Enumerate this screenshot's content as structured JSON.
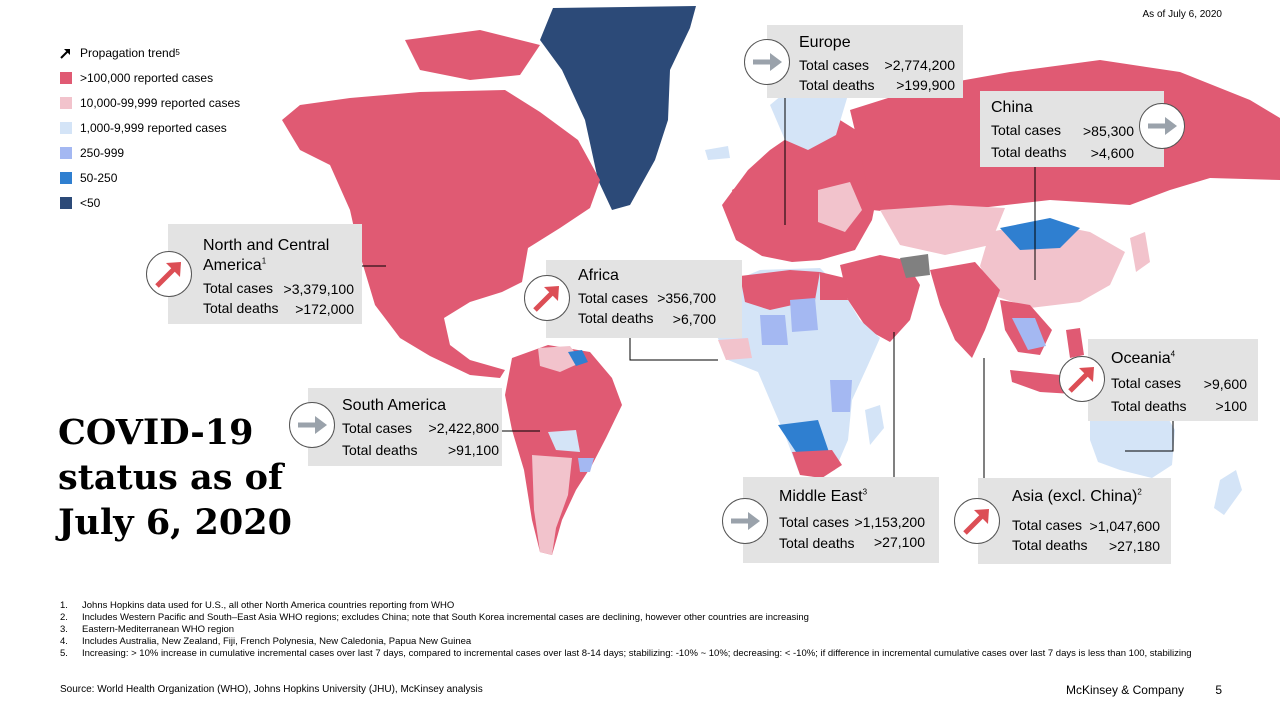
{
  "as_of": "As of July 6, 2020",
  "legend": {
    "trend_label": "Propagation trend",
    "trend_ref": "5",
    "items": [
      {
        "label": ">100,000 reported cases",
        "color": "#e05a73"
      },
      {
        "label": "10,000-99,999 reported cases",
        "color": "#f2c3cc"
      },
      {
        "label": "1,000-9,999 reported cases",
        "color": "#d4e4f7"
      },
      {
        "label": "250-999",
        "color": "#a4b8f2"
      },
      {
        "label": "50-250",
        "color": "#2f7fd0"
      },
      {
        "label": "<50",
        "color": "#2c4a78"
      }
    ]
  },
  "title": {
    "line1": "COVID-19",
    "line2": "status as of",
    "line3": "July 6, 2020"
  },
  "labels": {
    "total_cases": "Total cases",
    "total_deaths": "Total deaths"
  },
  "trend_colors": {
    "increasing": "#dc4e55",
    "stabilizing": "#9aa2ab"
  },
  "regions": {
    "north_america": {
      "name_line1": "North and Central",
      "name_line2": "America",
      "ref": "1",
      "cases": ">3,379,100",
      "deaths": ">172,000",
      "trend": "increasing"
    },
    "africa": {
      "name": "Africa",
      "cases": ">356,700",
      "deaths": ">6,700",
      "trend": "increasing"
    },
    "europe": {
      "name": "Europe",
      "cases": ">2,774,200",
      "deaths": ">199,900",
      "trend": "stabilizing"
    },
    "china": {
      "name": "China",
      "cases": ">85,300",
      "deaths": ">4,600",
      "trend": "stabilizing"
    },
    "south_america": {
      "name": "South America",
      "cases": ">2,422,800",
      "deaths": ">91,100",
      "trend": "stabilizing"
    },
    "oceania": {
      "name": "Oceania",
      "ref": "4",
      "cases": ">9,600",
      "deaths": ">100",
      "trend": "increasing"
    },
    "middle_east": {
      "name": "Middle East",
      "ref": "3",
      "cases": ">1,153,200",
      "deaths": ">27,100",
      "trend": "stabilizing"
    },
    "asia": {
      "name": "Asia (excl. China)",
      "ref": "2",
      "cases": ">1,047,600",
      "deaths": ">27,180",
      "trend": "increasing"
    }
  },
  "footnotes": [
    {
      "n": "1.",
      "text": "Johns Hopkins data used for U.S., all other North America countries reporting from WHO"
    },
    {
      "n": "2.",
      "text": "Includes Western Pacific and South–East Asia WHO regions; excludes China; note that South Korea incremental cases are declining, however other countries are increasing"
    },
    {
      "n": "3.",
      "text": "Eastern-Mediterranean WHO region"
    },
    {
      "n": "4.",
      "text": "Includes Australia, New Zealand, Fiji, French Polynesia, New Caledonia, Papua New Guinea"
    },
    {
      "n": "5.",
      "text": "Increasing: > 10% increase in cumulative incremental cases over last 7 days, compared to incremental cases over last 8-14 days; stabilizing: -10% ~ 10%; decreasing: < -10%; if difference in incremental cumulative cases over last 7 days is less than 100, stabilizing"
    }
  ],
  "source": "Source: World Health Organization (WHO), Johns Hopkins University (JHU), McKinsey analysis",
  "brand": "McKinsey & Company",
  "page_number": "5"
}
